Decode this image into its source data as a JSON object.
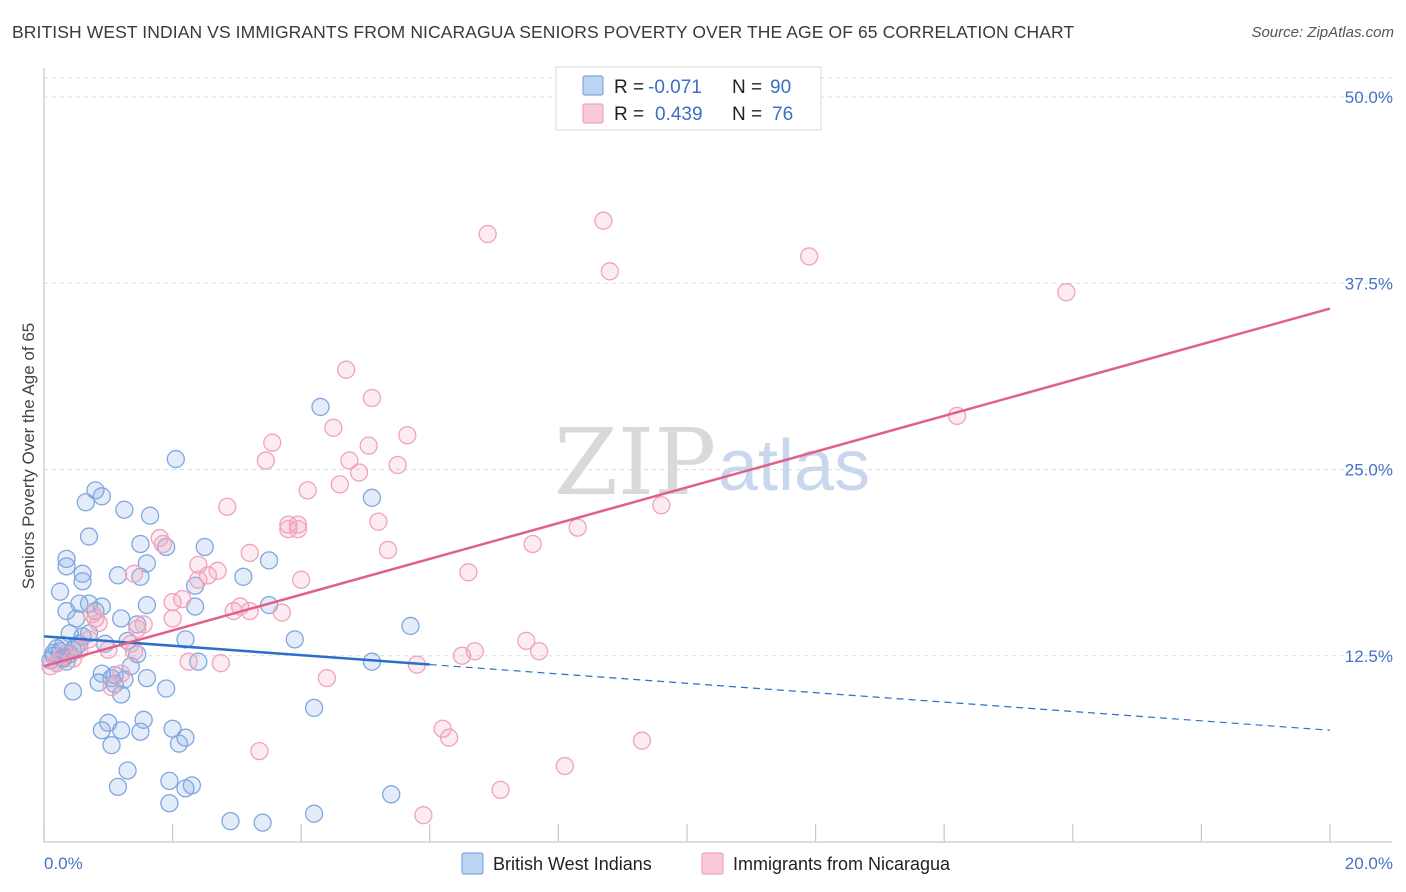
{
  "title": "BRITISH WEST INDIAN VS IMMIGRANTS FROM NICARAGUA SENIORS POVERTY OVER THE AGE OF 65 CORRELATION CHART",
  "source": "Source: ZipAtlas.com",
  "watermark": {
    "zip": "ZIP",
    "atlas": "atlas"
  },
  "chart_data": {
    "type": "scatter",
    "ylabel": "Seniors Poverty Over the Age of 65",
    "xlim": [
      0,
      20
    ],
    "ylim": [
      0,
      50
    ],
    "x_ticks": [
      {
        "value": 0,
        "label": "0.0%"
      },
      {
        "value": 20,
        "label": "20.0%"
      }
    ],
    "y_ticks": [
      {
        "value": 12.5,
        "label": "12.5%"
      },
      {
        "value": 25,
        "label": "25.0%"
      },
      {
        "value": 37.5,
        "label": "37.5%"
      },
      {
        "value": 50,
        "label": "50.0%"
      }
    ],
    "grid": true,
    "legend_stats": [
      {
        "r_label": "R = ",
        "r_value": "-0.071",
        "n_label": "N = ",
        "n_value": "90"
      },
      {
        "r_label": "R = ",
        "r_value": "0.439",
        "n_label": "N = ",
        "n_value": "76"
      }
    ],
    "series": [
      {
        "name": "British West Indians",
        "color": "#7fa8e0",
        "line_color": "#2a6fc9",
        "trend": {
          "x0": 0,
          "y0": 13.8,
          "x1": 20,
          "y1": 7.5,
          "solid_until": 6.0
        },
        "points": [
          [
            0.1,
            12.2
          ],
          [
            0.15,
            12.5
          ],
          [
            0.2,
            12.0
          ],
          [
            0.25,
            12.8
          ],
          [
            0.3,
            12.3
          ],
          [
            0.35,
            12.1
          ],
          [
            0.4,
            12.6
          ],
          [
            0.3,
            13.2
          ],
          [
            0.2,
            13.0
          ],
          [
            0.45,
            12.9
          ],
          [
            0.5,
            13.1
          ],
          [
            0.55,
            13.3
          ],
          [
            0.6,
            13.8
          ],
          [
            0.7,
            14.0
          ],
          [
            0.4,
            14.0
          ],
          [
            0.35,
            15.5
          ],
          [
            0.5,
            15.0
          ],
          [
            0.55,
            16.0
          ],
          [
            0.7,
            16.0
          ],
          [
            0.8,
            15.5
          ],
          [
            0.9,
            15.8
          ],
          [
            1.2,
            15.0
          ],
          [
            1.45,
            14.6
          ],
          [
            1.6,
            15.9
          ],
          [
            0.25,
            16.8
          ],
          [
            0.6,
            17.5
          ],
          [
            0.35,
            18.5
          ],
          [
            0.6,
            18.0
          ],
          [
            0.35,
            19.0
          ],
          [
            1.15,
            17.9
          ],
          [
            1.6,
            18.7
          ],
          [
            1.5,
            17.8
          ],
          [
            0.7,
            20.5
          ],
          [
            1.5,
            20.0
          ],
          [
            1.9,
            19.8
          ],
          [
            2.5,
            19.8
          ],
          [
            1.65,
            21.9
          ],
          [
            0.65,
            22.8
          ],
          [
            0.9,
            23.2
          ],
          [
            0.8,
            23.6
          ],
          [
            1.25,
            22.3
          ],
          [
            2.05,
            25.7
          ],
          [
            2.35,
            17.2
          ],
          [
            2.35,
            15.8
          ],
          [
            3.1,
            17.8
          ],
          [
            3.5,
            15.9
          ],
          [
            3.5,
            18.9
          ],
          [
            2.2,
            13.6
          ],
          [
            0.95,
            13.3
          ],
          [
            1.3,
            13.5
          ],
          [
            1.45,
            12.6
          ],
          [
            1.35,
            11.8
          ],
          [
            0.9,
            11.3
          ],
          [
            1.05,
            11.0
          ],
          [
            1.1,
            11.2
          ],
          [
            1.25,
            10.9
          ],
          [
            0.85,
            10.7
          ],
          [
            1.1,
            10.6
          ],
          [
            1.2,
            9.9
          ],
          [
            1.6,
            11.0
          ],
          [
            0.45,
            10.1
          ],
          [
            1.9,
            10.3
          ],
          [
            2.4,
            12.1
          ],
          [
            3.9,
            13.6
          ],
          [
            5.1,
            12.1
          ],
          [
            5.7,
            14.5
          ],
          [
            4.2,
            9.0
          ],
          [
            4.3,
            29.2
          ],
          [
            5.1,
            23.1
          ],
          [
            1.55,
            8.2
          ],
          [
            1.2,
            7.5
          ],
          [
            1.5,
            7.4
          ],
          [
            0.9,
            7.5
          ],
          [
            1.0,
            8.0
          ],
          [
            2.0,
            7.6
          ],
          [
            2.2,
            7.0
          ],
          [
            2.1,
            6.6
          ],
          [
            1.05,
            6.5
          ],
          [
            1.3,
            4.8
          ],
          [
            1.15,
            3.7
          ],
          [
            1.95,
            4.1
          ],
          [
            2.2,
            3.6
          ],
          [
            2.3,
            3.8
          ],
          [
            1.95,
            2.6
          ],
          [
            2.9,
            1.4
          ],
          [
            3.4,
            1.3
          ],
          [
            4.2,
            1.9
          ],
          [
            5.4,
            3.2
          ],
          [
            0.3,
            12.4
          ],
          [
            0.15,
            12.7
          ]
        ]
      },
      {
        "name": "Immigrants from Nicaragua",
        "color": "#f0a3bb",
        "line_color": "#e0608a",
        "trend": {
          "x0": 0,
          "y0": 11.8,
          "x1": 20,
          "y1": 35.8,
          "solid_until": 20.0
        },
        "points": [
          [
            0.1,
            11.8
          ],
          [
            0.2,
            12.0
          ],
          [
            0.3,
            12.6
          ],
          [
            0.45,
            12.3
          ],
          [
            0.55,
            12.9
          ],
          [
            0.7,
            13.6
          ],
          [
            0.75,
            15.3
          ],
          [
            0.8,
            15.0
          ],
          [
            0.85,
            14.7
          ],
          [
            1.0,
            12.9
          ],
          [
            1.05,
            10.4
          ],
          [
            1.2,
            11.3
          ],
          [
            1.35,
            13.3
          ],
          [
            1.4,
            12.8
          ],
          [
            1.45,
            14.3
          ],
          [
            1.55,
            14.6
          ],
          [
            1.4,
            18.0
          ],
          [
            1.8,
            20.4
          ],
          [
            1.85,
            20.0
          ],
          [
            2.0,
            15.0
          ],
          [
            2.0,
            16.1
          ],
          [
            2.15,
            16.3
          ],
          [
            2.25,
            12.1
          ],
          [
            2.4,
            17.6
          ],
          [
            2.4,
            18.6
          ],
          [
            2.55,
            17.9
          ],
          [
            2.7,
            18.2
          ],
          [
            2.75,
            12.0
          ],
          [
            2.85,
            22.5
          ],
          [
            2.95,
            15.5
          ],
          [
            3.05,
            15.8
          ],
          [
            3.2,
            15.5
          ],
          [
            3.2,
            19.4
          ],
          [
            3.35,
            6.1
          ],
          [
            3.45,
            25.6
          ],
          [
            3.55,
            26.8
          ],
          [
            3.7,
            15.4
          ],
          [
            3.8,
            21.3
          ],
          [
            3.95,
            21.0
          ],
          [
            3.95,
            21.3
          ],
          [
            4.0,
            17.6
          ],
          [
            4.1,
            23.6
          ],
          [
            4.4,
            11.0
          ],
          [
            4.5,
            27.8
          ],
          [
            4.6,
            24.0
          ],
          [
            4.75,
            25.6
          ],
          [
            4.9,
            24.8
          ],
          [
            5.05,
            26.6
          ],
          [
            4.7,
            31.7
          ],
          [
            5.1,
            29.8
          ],
          [
            5.2,
            21.5
          ],
          [
            5.35,
            19.6
          ],
          [
            5.5,
            25.3
          ],
          [
            5.65,
            27.3
          ],
          [
            5.8,
            11.9
          ],
          [
            5.9,
            1.8
          ],
          [
            6.2,
            7.6
          ],
          [
            6.3,
            7.0
          ],
          [
            6.5,
            12.5
          ],
          [
            6.6,
            18.1
          ],
          [
            6.7,
            12.8
          ],
          [
            6.9,
            40.8
          ],
          [
            7.1,
            3.5
          ],
          [
            7.5,
            13.5
          ],
          [
            7.7,
            12.8
          ],
          [
            7.6,
            20.0
          ],
          [
            8.1,
            5.1
          ],
          [
            8.3,
            21.1
          ],
          [
            8.7,
            41.7
          ],
          [
            8.8,
            38.3
          ],
          [
            9.3,
            6.8
          ],
          [
            9.6,
            22.6
          ],
          [
            11.9,
            39.3
          ],
          [
            14.2,
            28.6
          ],
          [
            15.9,
            36.9
          ],
          [
            3.8,
            21.0
          ]
        ]
      }
    ]
  }
}
